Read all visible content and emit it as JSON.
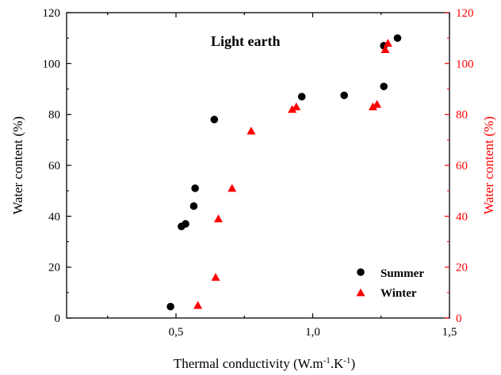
{
  "chart_data": {
    "type": "scatter",
    "title": "Light earth",
    "xlabel_main": "Thermal conductivity (W.m",
    "xlabel_sup1": "-1",
    "xlabel_mid": ".K",
    "xlabel_sup2": "-1",
    "xlabel_end": ")",
    "ylabel_left": "Water content (%)",
    "ylabel_right": "Water content (%)",
    "xlim": [
      0.1,
      1.5
    ],
    "ylim": [
      0,
      120
    ],
    "x_ticks": [
      0.5,
      1.0,
      1.5
    ],
    "x_tick_labels": [
      "0,5",
      "1,0",
      "1,5"
    ],
    "y_ticks": [
      0,
      20,
      40,
      60,
      80,
      100,
      120
    ],
    "y_tick_labels": [
      "0",
      "20",
      "40",
      "60",
      "80",
      "100",
      "120"
    ],
    "legend_position": "bottom-right",
    "colors": {
      "summer": "#000000",
      "winter": "#ff0000",
      "right_axis": "#ff0000"
    },
    "series": [
      {
        "name": "Summer",
        "marker": "circle",
        "color": "#000000",
        "points": [
          [
            0.48,
            4.5
          ],
          [
            0.52,
            36
          ],
          [
            0.535,
            37
          ],
          [
            0.565,
            44
          ],
          [
            0.57,
            51
          ],
          [
            0.64,
            78
          ],
          [
            0.96,
            87
          ],
          [
            1.115,
            87.5
          ],
          [
            1.26,
            91
          ],
          [
            1.26,
            107
          ],
          [
            1.31,
            110
          ]
        ]
      },
      {
        "name": "Winter",
        "marker": "triangle",
        "color": "#ff0000",
        "points": [
          [
            0.58,
            5
          ],
          [
            0.645,
            16
          ],
          [
            0.655,
            39
          ],
          [
            0.705,
            51
          ],
          [
            0.775,
            73.5
          ],
          [
            0.925,
            82
          ],
          [
            0.94,
            83
          ],
          [
            1.22,
            83
          ],
          [
            1.235,
            84
          ],
          [
            1.265,
            105.5
          ],
          [
            1.275,
            108
          ]
        ]
      }
    ]
  }
}
